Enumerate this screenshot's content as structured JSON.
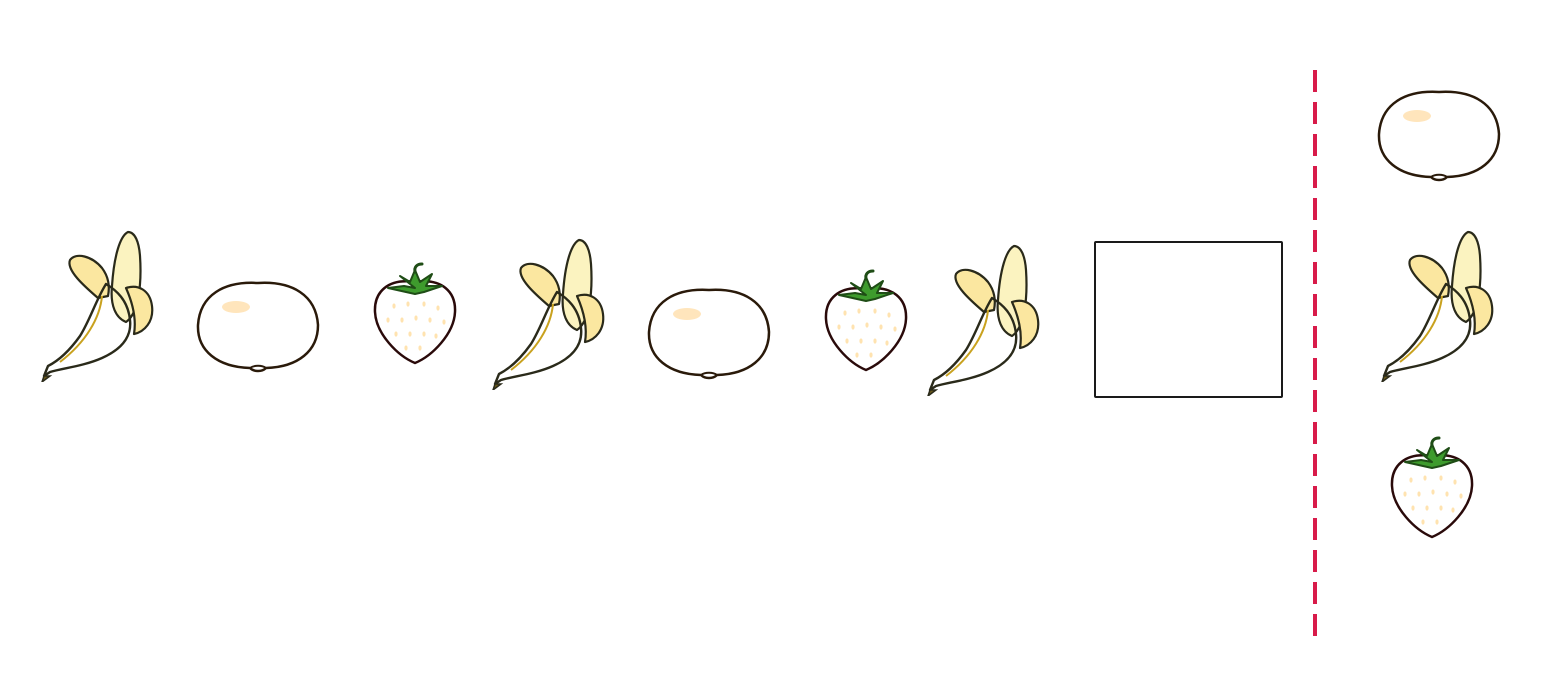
{
  "puzzle": {
    "sequence": [
      {
        "fruit": "banana",
        "icon": "banana-icon"
      },
      {
        "fruit": "orange",
        "icon": "orange-icon"
      },
      {
        "fruit": "strawberry",
        "icon": "strawberry-icon"
      },
      {
        "fruit": "banana",
        "icon": "banana-icon"
      },
      {
        "fruit": "orange",
        "icon": "orange-icon"
      },
      {
        "fruit": "strawberry",
        "icon": "strawberry-icon"
      },
      {
        "fruit": "banana",
        "icon": "banana-icon"
      },
      {
        "fruit": "",
        "icon": "empty-answer-box"
      }
    ],
    "options": [
      {
        "fruit": "orange",
        "icon": "orange-icon"
      },
      {
        "fruit": "banana",
        "icon": "banana-icon"
      },
      {
        "fruit": "strawberry",
        "icon": "strawberry-icon"
      }
    ]
  },
  "colors": {
    "banana_peel": "#f3d650",
    "banana_inner": "#fbf3c0",
    "orange": "#f7941d",
    "strawberry": "#dd1f2b",
    "leaf": "#3e9b2d",
    "divider": "#d81b4a",
    "outline": "#1a1a1a"
  }
}
